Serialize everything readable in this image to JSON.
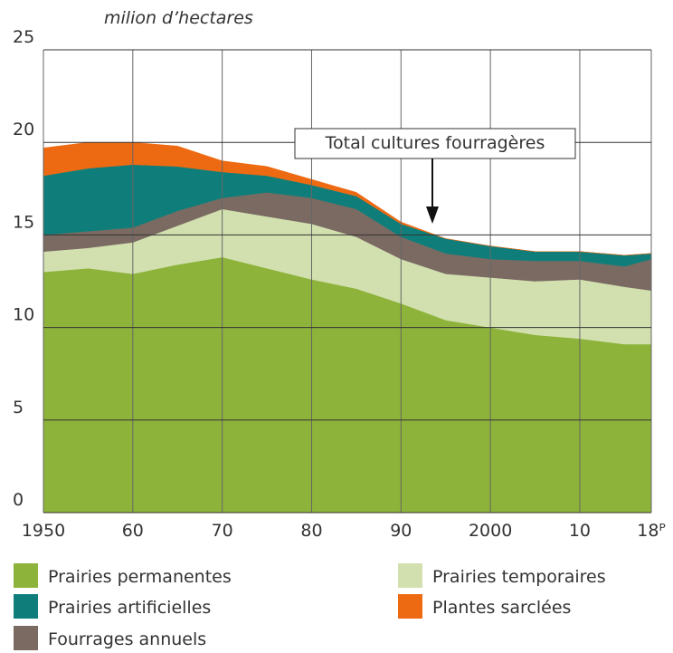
{
  "chart_data": {
    "type": "stacked_area",
    "unit_label": "milion d’hectares",
    "annotation": "Total cultures fourragères",
    "x": [
      1950,
      1955,
      1960,
      1965,
      1970,
      1975,
      1980,
      1985,
      1990,
      1995,
      2000,
      2005,
      2010,
      2015,
      2018
    ],
    "series": [
      {
        "name": "Prairies permanentes",
        "color": "#8db33a",
        "values": [
          13.0,
          13.2,
          12.9,
          13.4,
          13.8,
          13.2,
          12.6,
          12.1,
          11.3,
          10.4,
          10.0,
          9.6,
          9.4,
          9.1,
          9.1
        ]
      },
      {
        "name": "Prairies temporaires",
        "color": "#d2e0b0",
        "values": [
          1.1,
          1.1,
          1.7,
          2.1,
          2.6,
          2.8,
          3.0,
          2.8,
          2.4,
          2.5,
          2.7,
          2.9,
          3.2,
          3.1,
          2.9
        ]
      },
      {
        "name": "Fourrages annuels",
        "color": "#7a6a62",
        "values": [
          0.9,
          0.9,
          0.8,
          0.8,
          0.6,
          1.3,
          1.4,
          1.5,
          1.2,
          1.1,
          1.0,
          1.1,
          1.0,
          1.1,
          1.7
        ]
      },
      {
        "name": "Prairies artificielles",
        "color": "#0f7e7a",
        "values": [
          3.2,
          3.4,
          3.4,
          2.4,
          1.4,
          0.9,
          0.7,
          0.7,
          0.7,
          0.8,
          0.7,
          0.5,
          0.5,
          0.6,
          0.3
        ]
      },
      {
        "name": "Plantes sarclées",
        "color": "#ee6a12",
        "values": [
          1.5,
          1.4,
          1.2,
          1.1,
          0.6,
          0.5,
          0.3,
          0.2,
          0.1,
          0.0,
          0.0,
          0.0,
          0.0,
          0.0,
          0.0
        ]
      }
    ],
    "xlim": [
      1950,
      2018
    ],
    "xticks": [
      {
        "value": 1950,
        "label": "1950"
      },
      {
        "value": 1960,
        "label": "60"
      },
      {
        "value": 1970,
        "label": "70"
      },
      {
        "value": 1980,
        "label": "80"
      },
      {
        "value": 1990,
        "label": "90"
      },
      {
        "value": 2000,
        "label": "2000"
      },
      {
        "value": 2010,
        "label": "10"
      },
      {
        "value": 2018,
        "label": "18ᴾ"
      }
    ],
    "ylim": [
      0,
      25
    ],
    "yticks": [
      0,
      5,
      10,
      15,
      20,
      25
    ],
    "grid": true
  }
}
